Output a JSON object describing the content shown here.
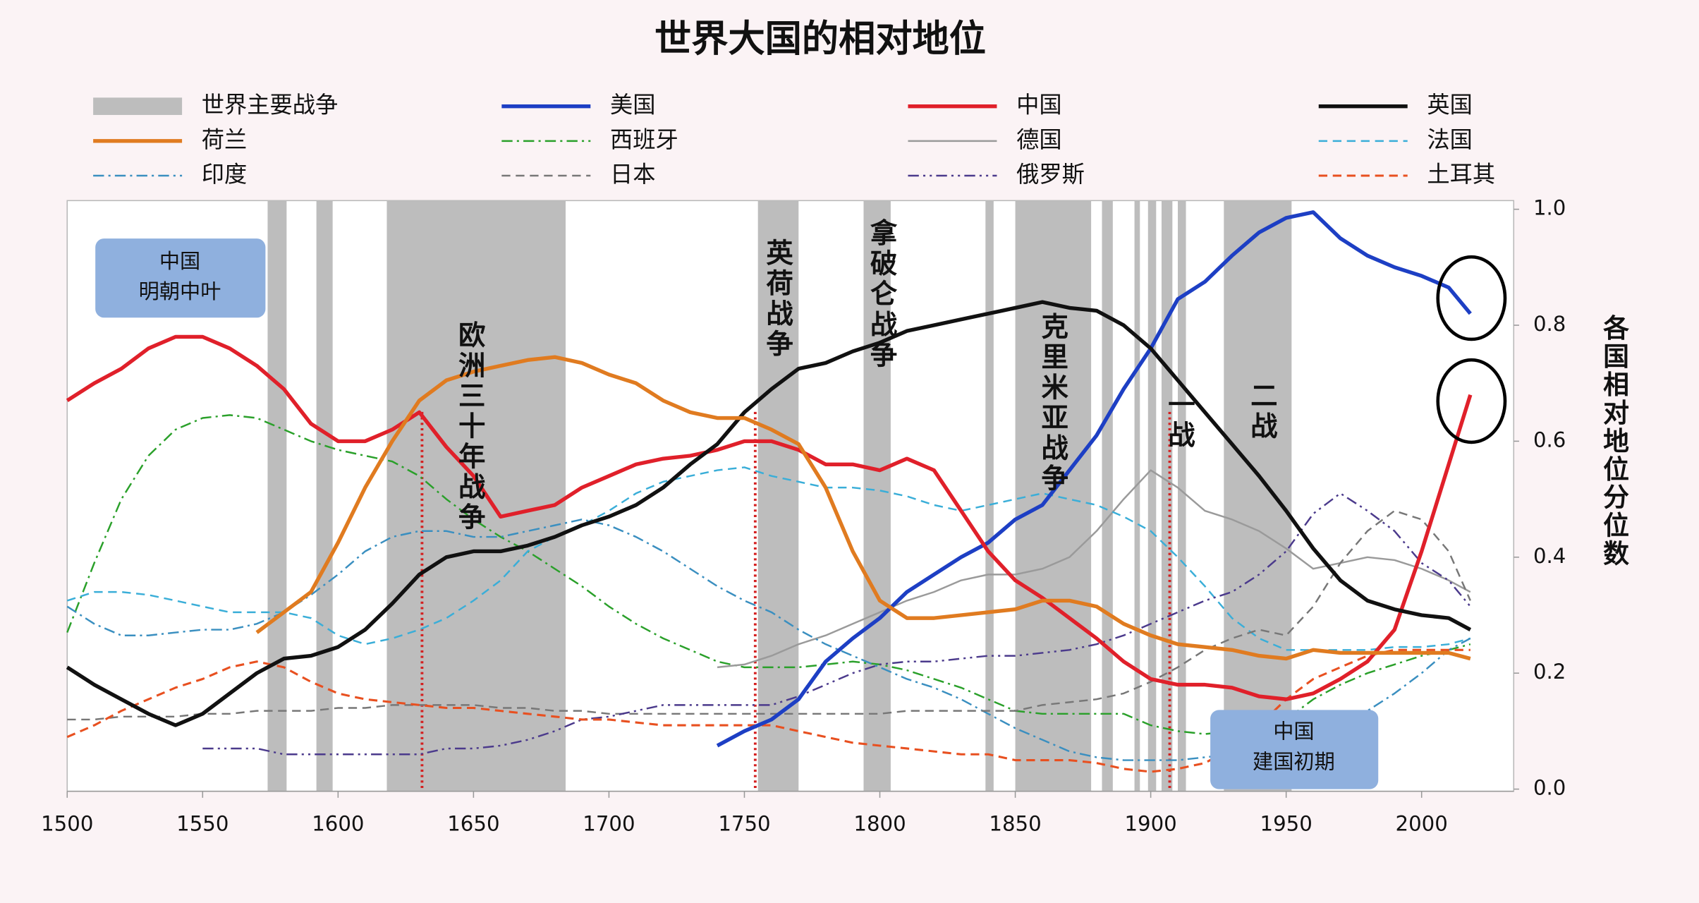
{
  "chart_data": {
    "type": "line",
    "title": "世界大国的相对地位",
    "y_label": "各国相对地位分位数",
    "xlim": [
      1500,
      2034
    ],
    "ylim": [
      0,
      1.0
    ],
    "xticks": [
      1500,
      1550,
      1600,
      1650,
      1700,
      1750,
      1800,
      1850,
      1900,
      1950,
      2000
    ],
    "yticks": [
      {
        "value": 0,
        "label": "0.0"
      },
      0.2,
      0.4,
      0.6,
      0.8,
      {
        "value": 1,
        "label": "1.0"
      }
    ],
    "grid": false,
    "x": [
      1500,
      1510,
      1520,
      1530,
      1540,
      1550,
      1560,
      1570,
      1580,
      1590,
      1600,
      1610,
      1620,
      1630,
      1640,
      1650,
      1660,
      1670,
      1680,
      1690,
      1700,
      1710,
      1720,
      1730,
      1740,
      1750,
      1760,
      1770,
      1780,
      1790,
      1800,
      1810,
      1820,
      1830,
      1840,
      1850,
      1860,
      1870,
      1880,
      1890,
      1900,
      1910,
      1920,
      1930,
      1940,
      1950,
      1960,
      1970,
      1980,
      1990,
      2000,
      2010,
      2018
    ],
    "war_band": {
      "name": "世界主要战争",
      "color": "#bdbdbd",
      "ranges": [
        [
          1574,
          1581
        ],
        [
          1592,
          1598
        ],
        [
          1618,
          1684
        ],
        [
          1755,
          1770
        ],
        [
          1794,
          1804
        ],
        [
          1839,
          1842
        ],
        [
          1850,
          1878
        ],
        [
          1882,
          1886
        ],
        [
          1894,
          1896
        ],
        [
          1899,
          1902
        ],
        [
          1904,
          1908
        ],
        [
          1910,
          1913
        ],
        [
          1927,
          1952
        ]
      ]
    },
    "reference_lines": [
      1631,
      1754,
      1907
    ],
    "reference_color": "#d42020",
    "war_labels": [
      "欧洲三十年战争",
      "英荷战争",
      "拿破仑战争",
      "克里米亚战争",
      "一战",
      "二战"
    ],
    "notes": [
      [
        "中国",
        "明朝中叶"
      ],
      [
        "中国",
        "建国初期"
      ]
    ],
    "series": [
      {
        "name": "美国",
        "color": "#1d3fc4",
        "style": "solid",
        "width": 3.5,
        "values": [
          null,
          null,
          null,
          null,
          null,
          null,
          null,
          null,
          null,
          null,
          null,
          null,
          null,
          null,
          null,
          null,
          null,
          null,
          null,
          null,
          null,
          null,
          null,
          null,
          0.075,
          0.1,
          0.12,
          0.155,
          0.22,
          0.26,
          0.295,
          0.34,
          0.37,
          0.4,
          0.425,
          0.465,
          0.49,
          0.55,
          0.61,
          0.69,
          0.76,
          0.845,
          0.875,
          0.92,
          0.96,
          0.985,
          0.995,
          0.95,
          0.92,
          0.9,
          0.885,
          0.865,
          0.82
        ]
      },
      {
        "name": "中国",
        "color": "#e0202a",
        "style": "solid",
        "width": 3.5,
        "values": [
          0.67,
          0.7,
          0.725,
          0.76,
          0.78,
          0.78,
          0.76,
          0.73,
          0.69,
          0.63,
          0.6,
          0.6,
          0.62,
          0.65,
          0.59,
          0.54,
          0.47,
          0.48,
          0.49,
          0.52,
          0.54,
          0.56,
          0.57,
          0.575,
          0.585,
          0.6,
          0.6,
          0.585,
          0.56,
          0.56,
          0.55,
          0.57,
          0.55,
          0.48,
          0.41,
          0.36,
          0.33,
          0.295,
          0.26,
          0.22,
          0.19,
          0.18,
          0.18,
          0.175,
          0.16,
          0.155,
          0.165,
          0.19,
          0.22,
          0.275,
          0.41,
          0.56,
          0.68
        ]
      },
      {
        "name": "英国",
        "color": "#111111",
        "style": "solid",
        "width": 3.5,
        "values": [
          0.21,
          0.18,
          0.155,
          0.13,
          0.11,
          0.13,
          0.165,
          0.2,
          0.225,
          0.23,
          0.245,
          0.275,
          0.32,
          0.37,
          0.4,
          0.41,
          0.41,
          0.42,
          0.435,
          0.455,
          0.47,
          0.49,
          0.52,
          0.56,
          0.595,
          0.65,
          0.69,
          0.725,
          0.735,
          0.755,
          0.77,
          0.79,
          0.8,
          0.81,
          0.82,
          0.83,
          0.84,
          0.83,
          0.825,
          0.8,
          0.76,
          0.705,
          0.65,
          0.595,
          0.54,
          0.48,
          0.415,
          0.36,
          0.325,
          0.31,
          0.3,
          0.295,
          0.275
        ]
      },
      {
        "name": "荷兰",
        "color": "#e07b20",
        "style": "solid",
        "width": 3.5,
        "values": [
          null,
          null,
          null,
          null,
          null,
          null,
          null,
          0.27,
          0.305,
          0.34,
          0.425,
          0.52,
          0.6,
          0.67,
          0.705,
          0.72,
          0.73,
          0.74,
          0.745,
          0.735,
          0.715,
          0.7,
          0.67,
          0.65,
          0.64,
          0.64,
          0.62,
          0.595,
          0.52,
          0.41,
          0.325,
          0.295,
          0.295,
          0.3,
          0.305,
          0.31,
          0.325,
          0.325,
          0.315,
          0.285,
          0.265,
          0.25,
          0.245,
          0.24,
          0.23,
          0.225,
          0.24,
          0.235,
          0.235,
          0.235,
          0.235,
          0.235,
          0.225
        ]
      },
      {
        "name": "西班牙",
        "color": "#2aa02a",
        "style": "dashdot",
        "width": 1.6,
        "values": [
          0.27,
          0.39,
          0.5,
          0.575,
          0.62,
          0.64,
          0.645,
          0.64,
          0.62,
          0.6,
          0.585,
          0.575,
          0.565,
          0.54,
          0.5,
          0.465,
          0.435,
          0.41,
          0.38,
          0.35,
          0.315,
          0.285,
          0.26,
          0.24,
          0.22,
          0.21,
          0.21,
          0.21,
          0.215,
          0.22,
          0.215,
          0.205,
          0.19,
          0.175,
          0.155,
          0.135,
          0.13,
          0.13,
          0.13,
          0.13,
          0.11,
          0.1,
          0.095,
          0.1,
          0.105,
          0.12,
          0.155,
          0.18,
          0.2,
          0.215,
          0.23,
          0.24,
          0.25
        ]
      },
      {
        "name": "德国",
        "color": "#9a9a9a",
        "style": "solid",
        "width": 1.6,
        "values": [
          null,
          null,
          null,
          null,
          null,
          null,
          null,
          null,
          null,
          null,
          null,
          null,
          null,
          null,
          null,
          null,
          null,
          null,
          null,
          null,
          null,
          null,
          null,
          null,
          0.21,
          0.215,
          0.23,
          0.25,
          0.265,
          0.285,
          0.305,
          0.325,
          0.34,
          0.36,
          0.37,
          0.37,
          0.38,
          0.4,
          0.445,
          0.5,
          0.55,
          0.52,
          0.48,
          0.465,
          0.445,
          0.415,
          0.38,
          0.39,
          0.4,
          0.395,
          0.38,
          0.36,
          0.34
        ]
      },
      {
        "name": "法国",
        "color": "#3aaed8",
        "style": "dashed",
        "width": 1.6,
        "values": [
          0.325,
          0.34,
          0.34,
          0.335,
          0.325,
          0.315,
          0.305,
          0.305,
          0.305,
          0.295,
          0.265,
          0.25,
          0.26,
          0.275,
          0.295,
          0.325,
          0.36,
          0.41,
          0.435,
          0.455,
          0.48,
          0.51,
          0.53,
          0.54,
          0.55,
          0.555,
          0.54,
          0.53,
          0.52,
          0.52,
          0.515,
          0.505,
          0.49,
          0.48,
          0.49,
          0.5,
          0.51,
          0.5,
          0.49,
          0.47,
          0.445,
          0.4,
          0.35,
          0.295,
          0.26,
          0.24,
          0.24,
          0.24,
          0.24,
          0.245,
          0.245,
          0.25,
          0.26
        ]
      },
      {
        "name": "印度",
        "color": "#3a8fc0",
        "style": "dashdot",
        "width": 1.6,
        "values": [
          0.315,
          0.285,
          0.265,
          0.265,
          0.27,
          0.275,
          0.275,
          0.285,
          0.305,
          0.335,
          0.37,
          0.41,
          0.435,
          0.445,
          0.445,
          0.435,
          0.435,
          0.445,
          0.455,
          0.465,
          0.455,
          0.435,
          0.41,
          0.38,
          0.35,
          0.325,
          0.305,
          0.275,
          0.25,
          0.23,
          0.21,
          0.19,
          0.175,
          0.155,
          0.13,
          0.105,
          0.085,
          0.065,
          0.055,
          0.05,
          0.05,
          0.05,
          0.055,
          0.06,
          0.07,
          0.08,
          0.1,
          0.12,
          0.135,
          0.165,
          0.2,
          0.24,
          0.26
        ]
      },
      {
        "name": "日本",
        "color": "#777777",
        "style": "dashed",
        "width": 1.6,
        "values": [
          0.12,
          0.12,
          0.125,
          0.125,
          0.125,
          0.13,
          0.13,
          0.135,
          0.135,
          0.135,
          0.14,
          0.14,
          0.145,
          0.145,
          0.145,
          0.145,
          0.14,
          0.14,
          0.135,
          0.135,
          0.13,
          0.13,
          0.13,
          0.13,
          0.13,
          0.13,
          0.13,
          0.13,
          0.13,
          0.13,
          0.13,
          0.135,
          0.135,
          0.135,
          0.135,
          0.135,
          0.145,
          0.15,
          0.155,
          0.165,
          0.185,
          0.21,
          0.24,
          0.26,
          0.275,
          0.265,
          0.315,
          0.39,
          0.445,
          0.48,
          0.465,
          0.41,
          0.325
        ]
      },
      {
        "name": "俄罗斯",
        "color": "#4b3a8c",
        "style": "dashdotdot",
        "width": 1.6,
        "values": [
          null,
          null,
          null,
          null,
          null,
          0.07,
          0.07,
          0.07,
          0.06,
          0.06,
          0.06,
          0.06,
          0.06,
          0.06,
          0.07,
          0.07,
          0.075,
          0.085,
          0.1,
          0.12,
          0.125,
          0.135,
          0.145,
          0.145,
          0.145,
          0.145,
          0.145,
          0.16,
          0.18,
          0.2,
          0.215,
          0.22,
          0.22,
          0.225,
          0.23,
          0.23,
          0.235,
          0.24,
          0.25,
          0.265,
          0.285,
          0.305,
          0.325,
          0.34,
          0.37,
          0.41,
          0.475,
          0.51,
          0.48,
          0.445,
          0.39,
          0.36,
          0.315
        ]
      },
      {
        "name": "土耳其",
        "color": "#e85020",
        "style": "dashed",
        "width": 2,
        "values": [
          0.09,
          0.11,
          0.135,
          0.155,
          0.175,
          0.19,
          0.21,
          0.22,
          0.21,
          0.185,
          0.165,
          0.155,
          0.15,
          0.145,
          0.14,
          0.14,
          0.135,
          0.13,
          0.125,
          0.12,
          0.12,
          0.115,
          0.11,
          0.11,
          0.11,
          0.11,
          0.11,
          0.1,
          0.09,
          0.08,
          0.075,
          0.07,
          0.065,
          0.06,
          0.06,
          0.05,
          0.05,
          0.05,
          0.045,
          0.035,
          0.03,
          0.035,
          0.045,
          0.07,
          0.11,
          0.155,
          0.19,
          0.21,
          0.23,
          0.24,
          0.24,
          0.24,
          0.24
        ]
      }
    ]
  }
}
